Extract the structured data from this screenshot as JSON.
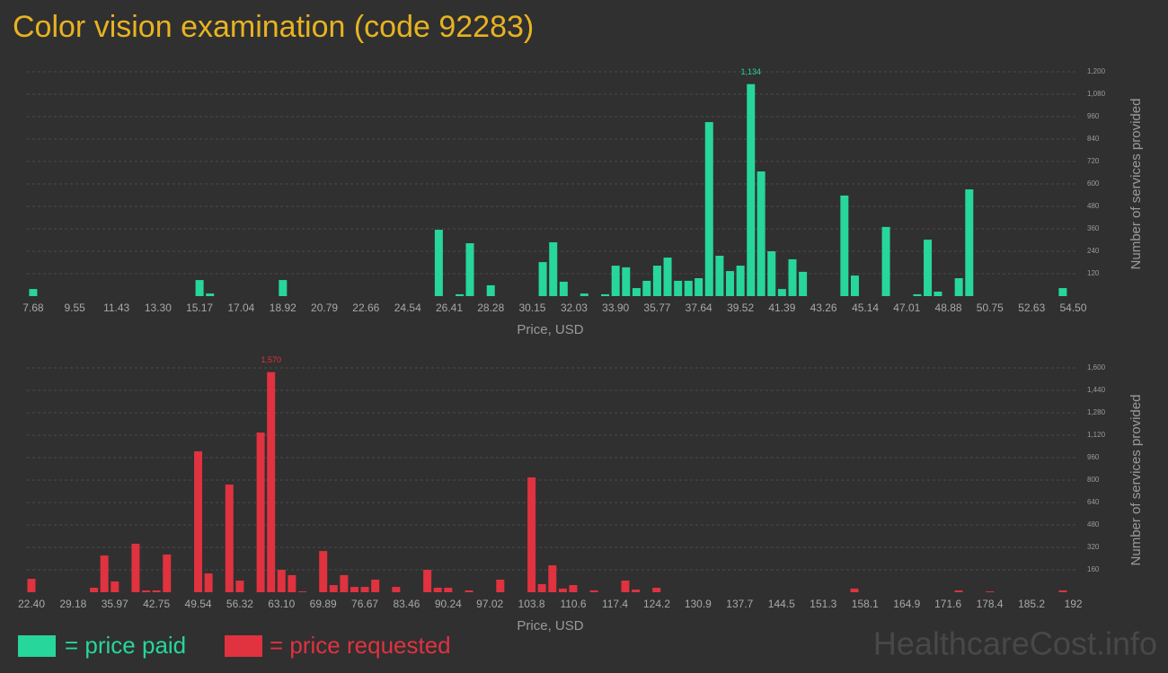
{
  "title": "Color vision examination (code 92283)",
  "watermark": "HealthcareCost.info",
  "chart_data": [
    {
      "type": "bar",
      "xlabel": "Price, USD",
      "ylabel": "Number of services provided",
      "xlim": [
        7.4,
        54.52
      ],
      "ylim": [
        0,
        1200
      ],
      "grid": true,
      "xticks": [
        7.68,
        9.55,
        11.43,
        {
          "value": 13.3,
          "label": "13.30"
        },
        15.17,
        17.04,
        18.92,
        20.79,
        22.66,
        24.54,
        26.41,
        28.28,
        30.15,
        32.03,
        {
          "value": 33.9,
          "label": "33.90"
        },
        35.77,
        37.64,
        39.52,
        41.39,
        43.26,
        45.14,
        47.01,
        48.88,
        50.75,
        52.63,
        {
          "value": 54.5,
          "label": "54.50"
        }
      ],
      "yticks": [
        120,
        240,
        360,
        480,
        600,
        720,
        840,
        960,
        {
          "value": 1080,
          "label": "1,080"
        },
        {
          "value": 1200,
          "label": "1,200"
        }
      ],
      "series": [
        {
          "name": "= price paid",
          "color": "#27d69b",
          "x": [
            7.68,
            15.17,
            15.64,
            18.92,
            25.94,
            26.88,
            27.34,
            28.28,
            30.62,
            31.09,
            31.56,
            32.49,
            33.43,
            33.9,
            34.37,
            34.84,
            35.3,
            35.77,
            36.24,
            36.71,
            37.18,
            37.64,
            38.11,
            38.58,
            39.05,
            39.52,
            39.99,
            40.45,
            40.92,
            41.39,
            41.86,
            42.33,
            44.2,
            44.67,
            46.07,
            47.48,
            47.95,
            48.41,
            49.35,
            49.82,
            54.03
          ],
          "values": [
            38,
            86,
            14,
            86,
            355,
            10,
            283,
            58,
            182,
            288,
            77,
            14,
            10,
            163,
            154,
            43,
            82,
            163,
            206,
            82,
            82,
            96,
            931,
            216,
            134,
            163,
            1134,
            667,
            240,
            38,
            197,
            130,
            538,
            110,
            370,
            10,
            302,
            24,
            96,
            571,
            43
          ],
          "value_labels": [
            null,
            null,
            null,
            null,
            null,
            null,
            null,
            null,
            null,
            null,
            null,
            null,
            null,
            null,
            null,
            null,
            null,
            null,
            null,
            null,
            null,
            null,
            null,
            null,
            null,
            null,
            "1,134",
            null,
            null,
            null,
            null,
            null,
            null,
            null,
            null,
            null,
            null,
            null,
            null,
            null,
            null
          ]
        }
      ]
    },
    {
      "type": "bar",
      "xlabel": "Price, USD",
      "ylabel": "Number of services provided",
      "xlim": [
        21.67,
        192.06
      ],
      "ylim": [
        0,
        1600
      ],
      "grid": true,
      "xticks": [
        {
          "value": 22.4,
          "label": "22.40"
        },
        29.18,
        35.97,
        42.75,
        49.54,
        56.32,
        {
          "value": 63.1,
          "label": "63.10"
        },
        69.89,
        76.67,
        83.46,
        90.24,
        97.02,
        103.8,
        110.6,
        117.4,
        124.2,
        130.9,
        137.7,
        144.5,
        151.3,
        158.1,
        164.9,
        171.6,
        178.4,
        185.2,
        192
      ],
      "yticks": [
        160,
        320,
        480,
        640,
        800,
        960,
        {
          "value": 1120,
          "label": "1,120"
        },
        {
          "value": 1280,
          "label": "1,280"
        },
        {
          "value": 1440,
          "label": "1,440"
        },
        {
          "value": 1600,
          "label": "1,600"
        }
      ],
      "series": [
        {
          "name": "= price requested",
          "color": "#e0323f",
          "x": [
            22.4,
            32.58,
            34.27,
            35.97,
            39.36,
            41.06,
            42.75,
            44.45,
            49.54,
            51.23,
            54.62,
            56.32,
            59.71,
            61.41,
            63.1,
            64.8,
            66.5,
            69.89,
            71.58,
            73.28,
            74.98,
            76.67,
            78.37,
            81.76,
            86.85,
            88.54,
            90.24,
            93.63,
            98.72,
            103.81,
            105.5,
            107.2,
            108.9,
            110.59,
            113.98,
            119.07,
            120.77,
            124.16,
            156.38,
            173.34,
            178.43,
            190.3
          ],
          "values": [
            96,
            32,
            262,
            77,
            346,
            13,
            13,
            269,
            1005,
            134,
            768,
            83,
            1139,
            1570,
            160,
            122,
            6,
            294,
            51,
            122,
            38,
            38,
            90,
            38,
            160,
            32,
            32,
            13,
            90,
            819,
            58,
            192,
            26,
            51,
            13,
            83,
            19,
            32,
            26,
            13,
            6,
            13
          ],
          "value_labels": [
            null,
            null,
            null,
            null,
            null,
            null,
            null,
            null,
            null,
            null,
            null,
            null,
            null,
            "1,570",
            null,
            null,
            null,
            null,
            null,
            null,
            null,
            null,
            null,
            null,
            null,
            null,
            null,
            null,
            null,
            null,
            null,
            null,
            null,
            null,
            null,
            null,
            null,
            null,
            null,
            null,
            null,
            null
          ]
        }
      ]
    }
  ]
}
